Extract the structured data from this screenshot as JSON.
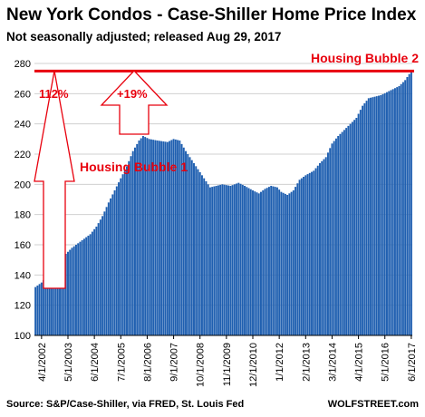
{
  "chart_data": {
    "type": "bar",
    "title": "New York Condos - Case-Shiller Home Price Index",
    "subtitle": "Not seasonally adjusted; released Aug 29, 2017",
    "source": "Source: S&P/Case-Shiller, via FRED,  St. Louis Fed",
    "watermark": "WOLFSTREET.com",
    "bar_color": "#1f5fb0",
    "accent_color": "#e8000d",
    "ylim": [
      100,
      280
    ],
    "yticks": [
      "100",
      "120",
      "140",
      "160",
      "180",
      "200",
      "220",
      "240",
      "260",
      "280"
    ],
    "xticks": [
      "4/1/2002",
      "5/1/2003",
      "6/1/2004",
      "7/1/2005",
      "8/1/2006",
      "9/1/2007",
      "10/1/2008",
      "11/1/2009",
      "12/1/2010",
      "1/1/2012",
      "2/1/2013",
      "3/1/2014",
      "4/1/2015",
      "5/1/2016",
      "6/1/2017"
    ],
    "start": "2002-01",
    "end": "2017-06",
    "anchors": [
      [
        "2002-01",
        132
      ],
      [
        "2002-04",
        135
      ],
      [
        "2002-07",
        140
      ],
      [
        "2002-10",
        144
      ],
      [
        "2003-01",
        150
      ],
      [
        "2003-04",
        154
      ],
      [
        "2003-07",
        158
      ],
      [
        "2003-10",
        161
      ],
      [
        "2004-01",
        164
      ],
      [
        "2004-04",
        167
      ],
      [
        "2004-07",
        172
      ],
      [
        "2004-10",
        179
      ],
      [
        "2005-01",
        188
      ],
      [
        "2005-04",
        196
      ],
      [
        "2005-07",
        204
      ],
      [
        "2005-10",
        212
      ],
      [
        "2006-01",
        222
      ],
      [
        "2006-04",
        229
      ],
      [
        "2006-06",
        232
      ],
      [
        "2006-09",
        230
      ],
      [
        "2007-01",
        229
      ],
      [
        "2007-06",
        228
      ],
      [
        "2007-09",
        230
      ],
      [
        "2007-12",
        229
      ],
      [
        "2008-03",
        222
      ],
      [
        "2008-06",
        216
      ],
      [
        "2008-09",
        210
      ],
      [
        "2008-12",
        204
      ],
      [
        "2009-03",
        198
      ],
      [
        "2009-06",
        199
      ],
      [
        "2009-09",
        200
      ],
      [
        "2010-01",
        199
      ],
      [
        "2010-05",
        201
      ],
      [
        "2010-08",
        199
      ],
      [
        "2010-12",
        196
      ],
      [
        "2011-03",
        194
      ],
      [
        "2011-06",
        197
      ],
      [
        "2011-09",
        199
      ],
      [
        "2011-12",
        198
      ],
      [
        "2012-02",
        195
      ],
      [
        "2012-05",
        193
      ],
      [
        "2012-08",
        196
      ],
      [
        "2012-11",
        203
      ],
      [
        "2013-02",
        206
      ],
      [
        "2013-06",
        209
      ],
      [
        "2013-09",
        214
      ],
      [
        "2013-12",
        218
      ],
      [
        "2014-03",
        227
      ],
      [
        "2014-06",
        232
      ],
      [
        "2014-09",
        236
      ],
      [
        "2014-12",
        240
      ],
      [
        "2015-03",
        244
      ],
      [
        "2015-06",
        252
      ],
      [
        "2015-09",
        257
      ],
      [
        "2015-12",
        258
      ],
      [
        "2016-03",
        259
      ],
      [
        "2016-06",
        261
      ],
      [
        "2016-09",
        263
      ],
      [
        "2016-12",
        265
      ],
      [
        "2017-03",
        269
      ],
      [
        "2017-06",
        275
      ]
    ],
    "reference_line_value": 275,
    "annotations": {
      "bubble1_label": "Housing Bubble 1",
      "bubble2_label": "Housing Bubble 2",
      "pct_left": "112%",
      "pct_right": "+19%"
    }
  }
}
